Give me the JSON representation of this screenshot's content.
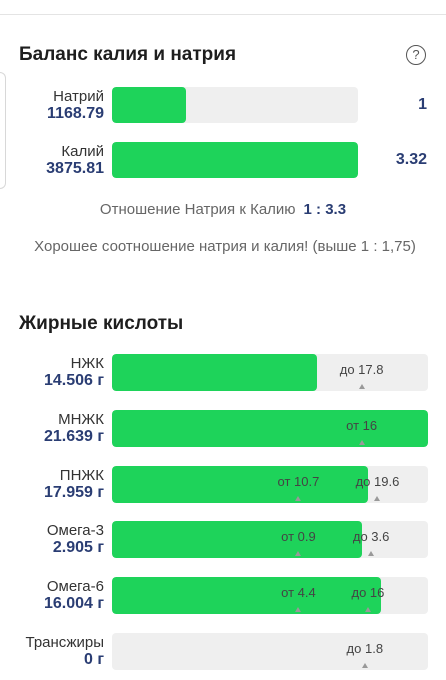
{
  "balance": {
    "title": "Баланс калия и натрия",
    "rows": [
      {
        "name": "Натрий",
        "value": "1168.79",
        "ratio": "1",
        "fill_pct": 30
      },
      {
        "name": "Калий",
        "value": "3875.81",
        "ratio": "3.32",
        "fill_pct": 100
      }
    ],
    "ratio_label": "Отношение Натрия к Калию",
    "ratio_value": "1 : 3.3",
    "note": "Хорошее соотношение натрия и калия! (выше 1 : 1,75)"
  },
  "fats": {
    "title": "Жирные кислоты",
    "rows": [
      {
        "name": "НЖК",
        "value": "14.506 г",
        "fill_pct": 65,
        "marks": [
          {
            "text": "до 17.8",
            "pos_pct": 79
          }
        ]
      },
      {
        "name": "МНЖК",
        "value": "21.639 г",
        "fill_pct": 100,
        "marks": [
          {
            "text": "от 16",
            "pos_pct": 79
          }
        ]
      },
      {
        "name": "ПНЖК",
        "value": "17.959 г",
        "fill_pct": 81,
        "marks": [
          {
            "text": "от 10.7",
            "pos_pct": 59
          },
          {
            "text": "до 19.6",
            "pos_pct": 84
          }
        ]
      },
      {
        "name": "Омега-3",
        "value": "2.905 г",
        "fill_pct": 79,
        "marks": [
          {
            "text": "от 0.9",
            "pos_pct": 59
          },
          {
            "text": "до 3.6",
            "pos_pct": 82
          }
        ]
      },
      {
        "name": "Омега-6",
        "value": "16.004 г",
        "fill_pct": 85,
        "marks": [
          {
            "text": "от 4.4",
            "pos_pct": 59
          },
          {
            "text": "до 16",
            "pos_pct": 81
          }
        ]
      },
      {
        "name": "Трансжиры",
        "value": "0 г",
        "fill_pct": 0,
        "marks": [
          {
            "text": "до 1.8",
            "pos_pct": 80
          }
        ]
      }
    ]
  }
}
